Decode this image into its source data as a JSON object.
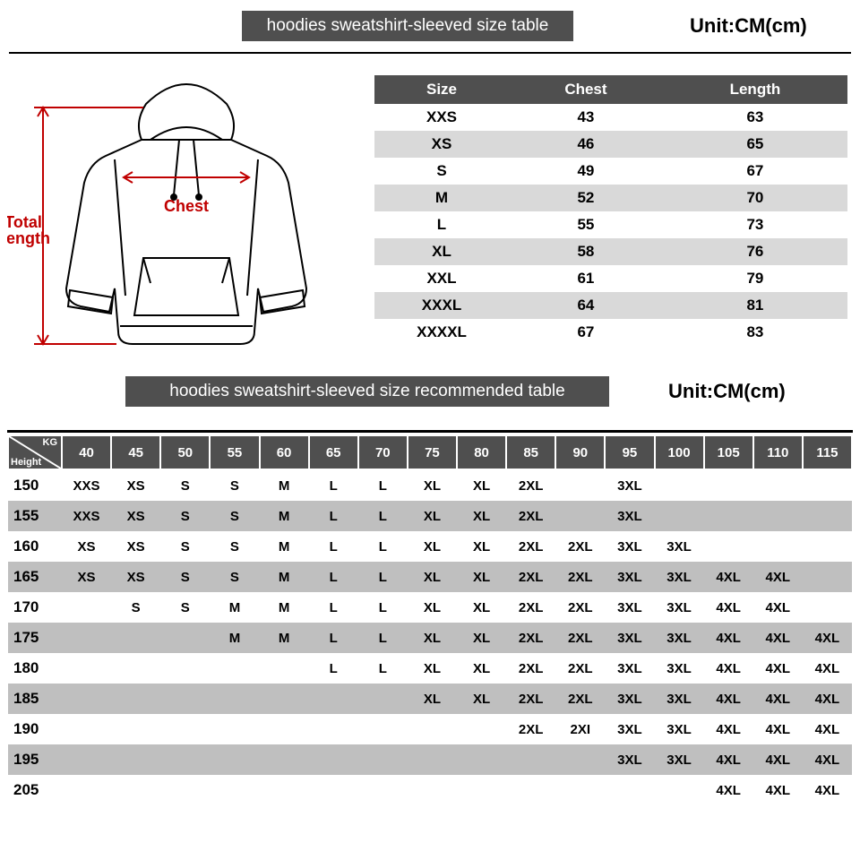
{
  "header1": {
    "title": "hoodies sweatshirt-sleeved size  table",
    "unit": "Unit:CM(cm)"
  },
  "header2": {
    "title": "hoodies sweatshirt-sleeved size recommended table",
    "unit": "Unit:CM(cm)"
  },
  "diagram": {
    "chest_label": "Chest",
    "total_length_label_1": "Total",
    "total_length_label_2": "Length"
  },
  "size_table": {
    "columns": [
      "Size",
      "Chest",
      "Length"
    ],
    "rows": [
      [
        "XXS",
        "43",
        "63"
      ],
      [
        "XS",
        "46",
        "65"
      ],
      [
        "S",
        "49",
        "67"
      ],
      [
        "M",
        "52",
        "70"
      ],
      [
        "L",
        "55",
        "73"
      ],
      [
        "XL",
        "58",
        "76"
      ],
      [
        "XXL",
        "61",
        "79"
      ],
      [
        "XXXL",
        "64",
        "81"
      ],
      [
        "XXXXL",
        "67",
        "83"
      ]
    ],
    "stripe_color": "#d9d9d9",
    "header_bg": "#4f4f4f",
    "header_fg": "#ffffff"
  },
  "rec_table": {
    "kg_label": "KG",
    "height_label": "Height",
    "weights": [
      "40",
      "45",
      "50",
      "55",
      "60",
      "65",
      "70",
      "75",
      "80",
      "85",
      "90",
      "95",
      "100",
      "105",
      "110",
      "115"
    ],
    "heights": [
      "150",
      "155",
      "160",
      "165",
      "170",
      "175",
      "180",
      "185",
      "190",
      "195",
      "205"
    ],
    "grid": [
      [
        "XXS",
        "XS",
        "S",
        "S",
        "M",
        "L",
        "L",
        "XL",
        "XL",
        "2XL",
        "",
        "3XL",
        "",
        "",
        "",
        ""
      ],
      [
        "XXS",
        "XS",
        "S",
        "S",
        "M",
        "L",
        "L",
        "XL",
        "XL",
        "2XL",
        "",
        "3XL",
        "",
        "",
        "",
        ""
      ],
      [
        "XS",
        "XS",
        "S",
        "S",
        "M",
        "L",
        "L",
        "XL",
        "XL",
        "2XL",
        "2XL",
        "3XL",
        "3XL",
        "",
        "",
        ""
      ],
      [
        "XS",
        "XS",
        "S",
        "S",
        "M",
        "L",
        "L",
        "XL",
        "XL",
        "2XL",
        "2XL",
        "3XL",
        "3XL",
        "4XL",
        "4XL",
        ""
      ],
      [
        "",
        "S",
        "S",
        "M",
        "M",
        "L",
        "L",
        "XL",
        "XL",
        "2XL",
        "2XL",
        "3XL",
        "3XL",
        "4XL",
        "4XL",
        ""
      ],
      [
        "",
        "",
        "",
        "M",
        "M",
        "L",
        "L",
        "XL",
        "XL",
        "2XL",
        "2XL",
        "3XL",
        "3XL",
        "4XL",
        "4XL",
        "4XL"
      ],
      [
        "",
        "",
        "",
        "",
        "",
        "L",
        "L",
        "XL",
        "XL",
        "2XL",
        "2XL",
        "3XL",
        "3XL",
        "4XL",
        "4XL",
        "4XL"
      ],
      [
        "",
        "",
        "",
        "",
        "",
        "",
        "",
        "XL",
        "XL",
        "2XL",
        "2XL",
        "3XL",
        "3XL",
        "4XL",
        "4XL",
        "4XL"
      ],
      [
        "",
        "",
        "",
        "",
        "",
        "",
        "",
        "",
        "",
        "2XL",
        "2XI",
        "3XL",
        "3XL",
        "4XL",
        "4XL",
        "4XL"
      ],
      [
        "",
        "",
        "",
        "",
        "",
        "",
        "",
        "",
        "",
        "",
        "",
        "3XL",
        "3XL",
        "4XL",
        "4XL",
        "4XL"
      ],
      [
        "",
        "",
        "",
        "",
        "",
        "",
        "",
        "",
        "",
        "",
        "",
        "",
        "",
        "4XL",
        "4XL",
        "4XL"
      ]
    ],
    "stripe_color": "#bfbfbf",
    "header_bg": "#4f4f4f",
    "header_fg": "#ffffff"
  },
  "colors": {
    "accent_red": "#c00000",
    "dark_gray": "#4f4f4f",
    "light_gray": "#d9d9d9",
    "mid_gray": "#bfbfbf"
  }
}
